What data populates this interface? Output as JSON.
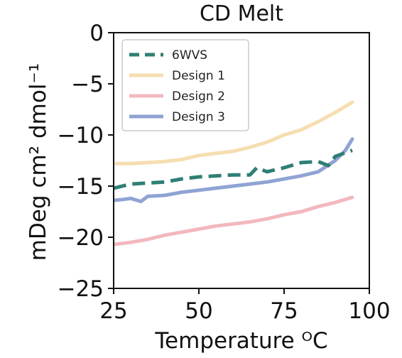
{
  "chart_data": {
    "type": "line",
    "title": "CD Melt",
    "xlabel": "Temperature ᴼC",
    "ylabel": "mDeg cm² dmol⁻¹",
    "xlim": [
      25,
      100
    ],
    "ylim": [
      -25,
      0
    ],
    "xticks": [
      "25",
      "50",
      "75",
      "100"
    ],
    "yticks": [
      "0",
      "−5",
      "−10",
      "−15",
      "−20",
      "−25"
    ],
    "grid": false,
    "legend_position": "top-left",
    "series": [
      {
        "name": "6WVS",
        "color": "#2f7f74",
        "style": "dashed",
        "x": [
          25,
          30,
          35,
          40,
          45,
          50,
          55,
          60,
          65,
          67,
          70,
          75,
          80,
          85,
          88,
          90,
          95
        ],
        "y": [
          -15.2,
          -14.8,
          -14.7,
          -14.6,
          -14.3,
          -14.1,
          -14.0,
          -13.9,
          -13.9,
          -13.2,
          -13.6,
          -13.2,
          -12.7,
          -12.6,
          -13.0,
          -12.1,
          -11.5
        ]
      },
      {
        "name": "Design 1",
        "color": "#f5deb0",
        "style": "solid",
        "x": [
          25,
          30,
          35,
          40,
          45,
          50,
          55,
          60,
          65,
          70,
          75,
          80,
          85,
          90,
          95
        ],
        "y": [
          -12.8,
          -12.8,
          -12.7,
          -12.6,
          -12.4,
          -12.0,
          -11.8,
          -11.6,
          -11.2,
          -10.7,
          -10.0,
          -9.5,
          -8.7,
          -7.8,
          -6.8
        ]
      },
      {
        "name": "Design 2",
        "color": "#f2b8be",
        "style": "solid",
        "x": [
          25,
          30,
          35,
          40,
          45,
          50,
          55,
          60,
          65,
          70,
          75,
          80,
          85,
          90,
          95
        ],
        "y": [
          -20.7,
          -20.5,
          -20.2,
          -19.8,
          -19.5,
          -19.2,
          -18.9,
          -18.7,
          -18.5,
          -18.2,
          -17.8,
          -17.5,
          -17.0,
          -16.6,
          -16.1
        ]
      },
      {
        "name": "Design 3",
        "color": "#8fa3d4",
        "style": "solid",
        "x": [
          25,
          28,
          30,
          33,
          35,
          40,
          45,
          50,
          55,
          60,
          65,
          70,
          75,
          80,
          85,
          90,
          93,
          95
        ],
        "y": [
          -16.4,
          -16.3,
          -16.2,
          -16.5,
          -16.0,
          -15.9,
          -15.6,
          -15.4,
          -15.2,
          -15.0,
          -14.8,
          -14.6,
          -14.3,
          -14.0,
          -13.6,
          -12.5,
          -11.5,
          -10.4
        ]
      }
    ]
  }
}
